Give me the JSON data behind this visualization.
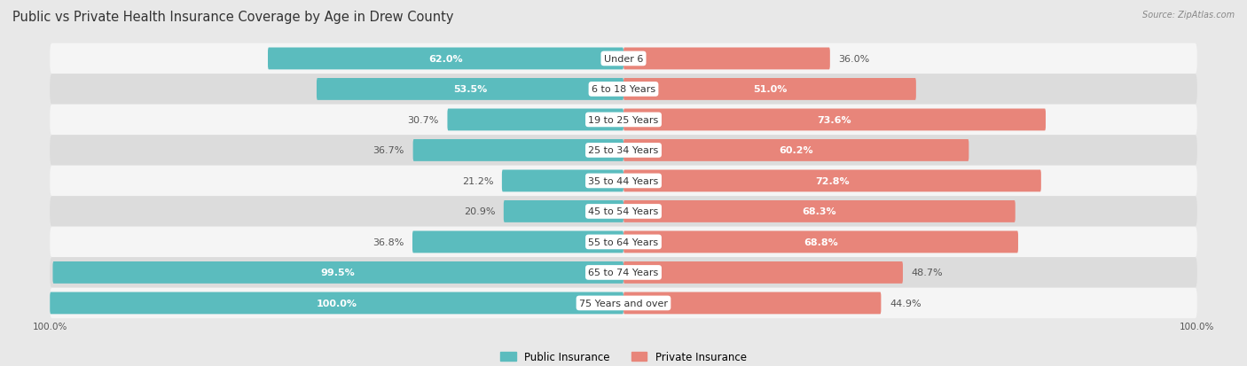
{
  "title": "Public vs Private Health Insurance Coverage by Age in Drew County",
  "source": "Source: ZipAtlas.com",
  "categories": [
    "Under 6",
    "6 to 18 Years",
    "19 to 25 Years",
    "25 to 34 Years",
    "35 to 44 Years",
    "45 to 54 Years",
    "55 to 64 Years",
    "65 to 74 Years",
    "75 Years and over"
  ],
  "public_values": [
    62.0,
    53.5,
    30.7,
    36.7,
    21.2,
    20.9,
    36.8,
    99.5,
    100.0
  ],
  "private_values": [
    36.0,
    51.0,
    73.6,
    60.2,
    72.8,
    68.3,
    68.8,
    48.7,
    44.9
  ],
  "public_color": "#5bbcbe",
  "private_color": "#e8857a",
  "bg_color": "#e8e8e8",
  "row_bg_even": "#f5f5f5",
  "row_bg_odd": "#dcdcdc",
  "max_value": 100.0,
  "bar_height": 0.72,
  "title_fontsize": 10.5,
  "label_fontsize": 8.0,
  "tick_fontsize": 7.5,
  "legend_fontsize": 8.5
}
